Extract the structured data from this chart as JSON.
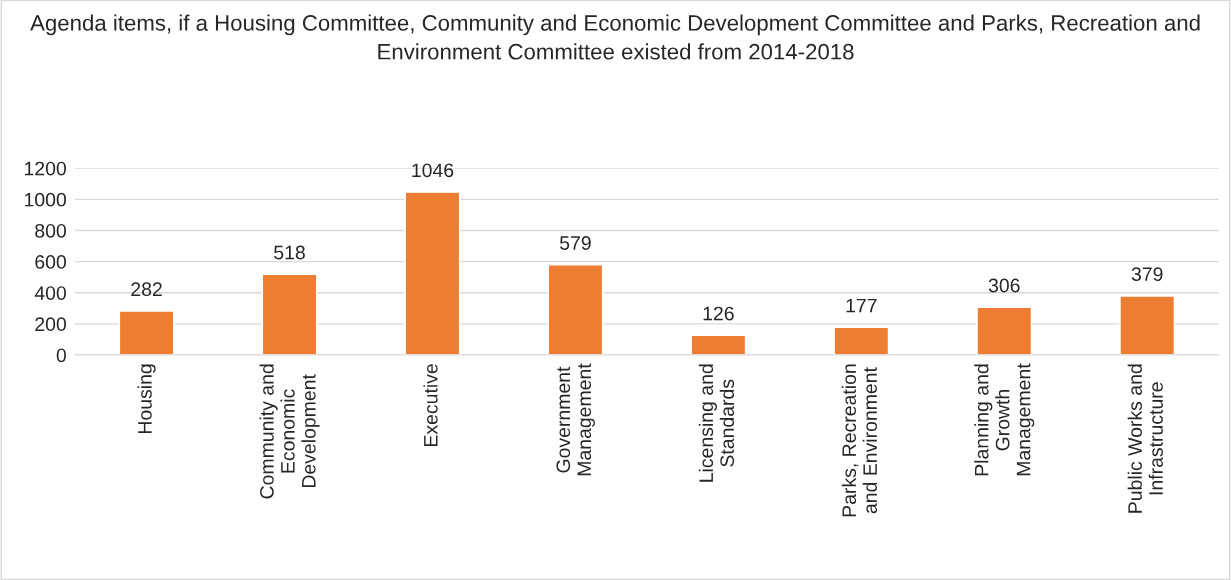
{
  "chart_data": {
    "type": "bar",
    "title": "Agenda items, if a Housing Committee, Community and Economic Development Committee and Parks, Recreation and Environment Committee existed from 2014-2018",
    "categories": [
      "Housing",
      "Community and\nEconomic\nDevelopment",
      "Executive",
      "Government\nManagement",
      "Licensing and\nStandards",
      "Parks, Recreation\nand Environment",
      "Planning and\nGrowth\nManagement",
      "Public Works and\nInfrastructure"
    ],
    "values": [
      282,
      518,
      1046,
      579,
      126,
      177,
      306,
      379
    ],
    "color": "#ed7d31",
    "ylim": [
      0,
      1200
    ],
    "yticks": [
      0,
      200,
      400,
      600,
      800,
      1000,
      1200
    ],
    "grid": "y",
    "data_labels": true
  }
}
